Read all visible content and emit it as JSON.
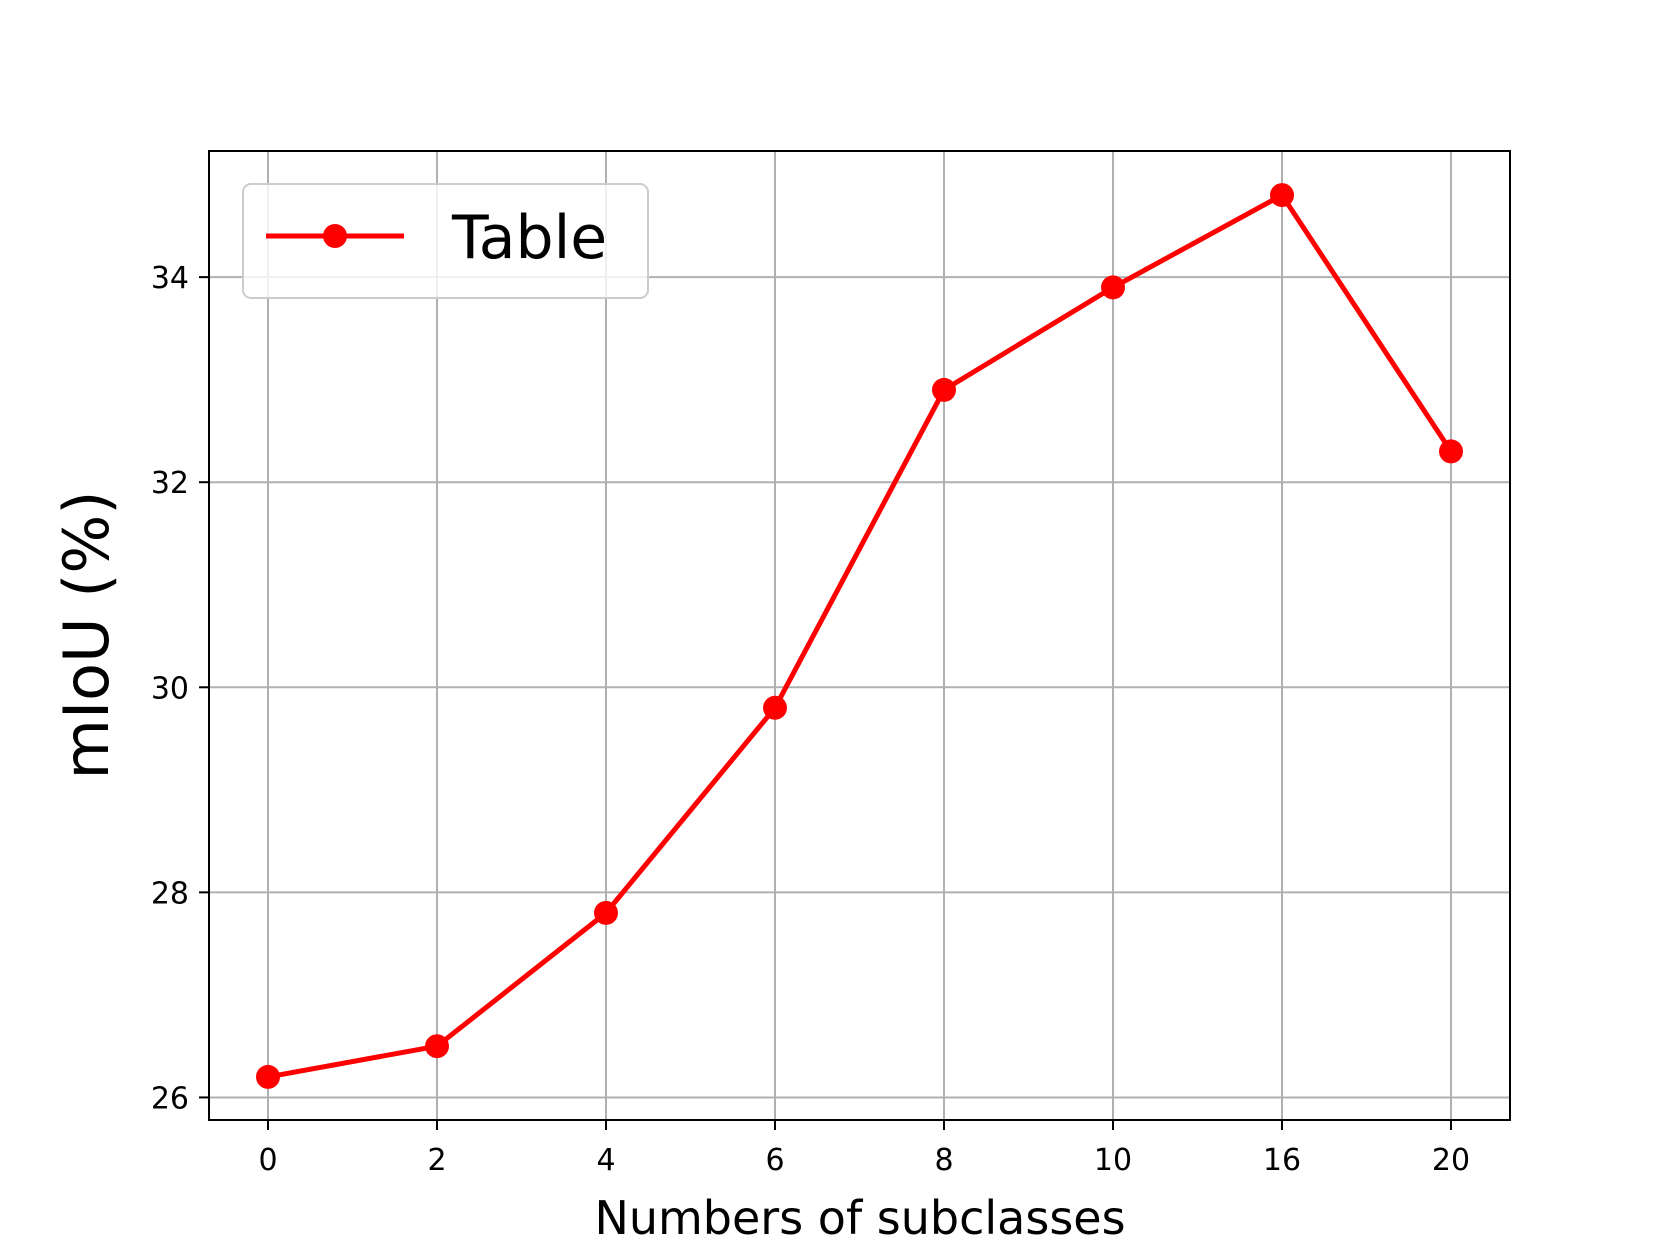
{
  "chart_data": {
    "type": "line",
    "title": "",
    "xlabel": "Numbers of subclasses",
    "ylabel": "mIoU (%)",
    "categories": [
      "0",
      "2",
      "4",
      "6",
      "8",
      "10",
      "16",
      "20"
    ],
    "series": [
      {
        "name": "Table",
        "values": [
          26.2,
          26.5,
          27.8,
          29.8,
          32.9,
          33.9,
          34.8,
          32.3
        ],
        "color": "#ff0000",
        "marker": "circle"
      }
    ],
    "yticks": [
      26,
      28,
      30,
      32,
      34
    ],
    "ylim": [
      25.78,
      35.23
    ],
    "grid": true,
    "legend": {
      "position": "upper-left",
      "entries": [
        "Table"
      ]
    }
  },
  "colors": {
    "series": "#ff0000",
    "grid": "#b0b0b0",
    "axis": "#000000"
  }
}
